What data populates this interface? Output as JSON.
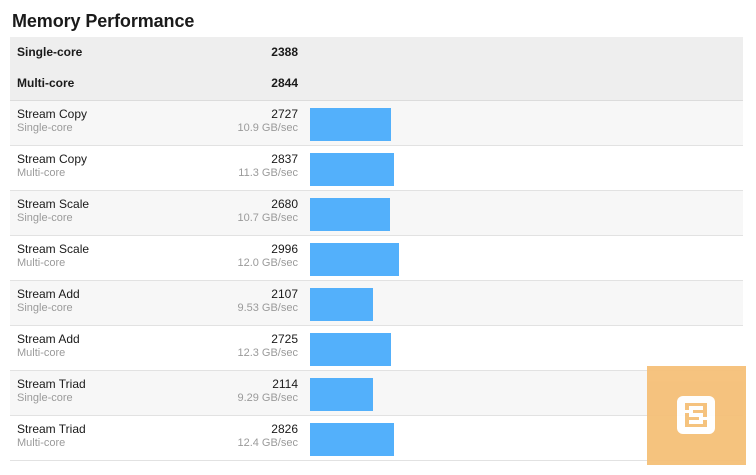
{
  "title": "Memory Performance",
  "summary": [
    {
      "label": "Single-core",
      "score": "2388"
    },
    {
      "label": "Multi-core",
      "score": "2844"
    }
  ],
  "bar_color": "#53b0fb",
  "bar_scale_max": 2996,
  "tests": [
    {
      "name": "Stream Copy",
      "mode": "Single-core",
      "score": "2727",
      "rate": "10.9 GB/sec",
      "value": 2727
    },
    {
      "name": "Stream Copy",
      "mode": "Multi-core",
      "score": "2837",
      "rate": "11.3 GB/sec",
      "value": 2837
    },
    {
      "name": "Stream Scale",
      "mode": "Single-core",
      "score": "2680",
      "rate": "10.7 GB/sec",
      "value": 2680
    },
    {
      "name": "Stream Scale",
      "mode": "Multi-core",
      "score": "2996",
      "rate": "12.0 GB/sec",
      "value": 2996
    },
    {
      "name": "Stream Add",
      "mode": "Single-core",
      "score": "2107",
      "rate": "9.53 GB/sec",
      "value": 2107
    },
    {
      "name": "Stream Add",
      "mode": "Multi-core",
      "score": "2725",
      "rate": "12.3 GB/sec",
      "value": 2725
    },
    {
      "name": "Stream Triad",
      "mode": "Single-core",
      "score": "2114",
      "rate": "9.29 GB/sec",
      "value": 2114
    },
    {
      "name": "Stream Triad",
      "mode": "Multi-core",
      "score": "2826",
      "rate": "12.4 GB/sec",
      "value": 2826
    }
  ],
  "watermark": {
    "icon": "logo-watermark-icon",
    "color": "#f5c078"
  }
}
